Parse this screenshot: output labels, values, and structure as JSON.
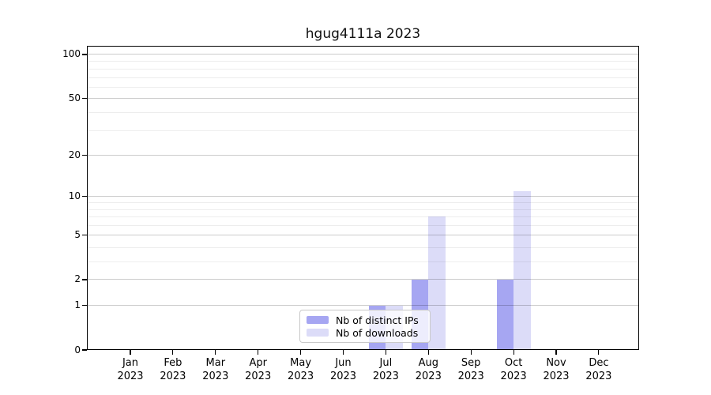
{
  "chart_data": {
    "type": "bar",
    "title": "hgug4111a 2023",
    "x_categories": [
      {
        "month": "Jan",
        "year": "2023"
      },
      {
        "month": "Feb",
        "year": "2023"
      },
      {
        "month": "Mar",
        "year": "2023"
      },
      {
        "month": "Apr",
        "year": "2023"
      },
      {
        "month": "May",
        "year": "2023"
      },
      {
        "month": "Jun",
        "year": "2023"
      },
      {
        "month": "Jul",
        "year": "2023"
      },
      {
        "month": "Aug",
        "year": "2023"
      },
      {
        "month": "Sep",
        "year": "2023"
      },
      {
        "month": "Oct",
        "year": "2023"
      },
      {
        "month": "Nov",
        "year": "2023"
      },
      {
        "month": "Dec",
        "year": "2023"
      }
    ],
    "series": [
      {
        "name": "Nb of distinct IPs",
        "color": "#a6a6f2",
        "values": [
          0,
          0,
          0,
          0,
          0,
          0,
          1,
          2,
          0,
          2,
          0,
          0
        ]
      },
      {
        "name": "Nb of downloads",
        "color": "#dcdcf8",
        "values": [
          0,
          0,
          0,
          0,
          0,
          0,
          1,
          7,
          0,
          11,
          0,
          0
        ]
      }
    ],
    "y_axis": {
      "scale": "log1p",
      "ticks": [
        0,
        1,
        2,
        5,
        10,
        20,
        50,
        100
      ],
      "minor_gridlines": [
        3,
        4,
        6,
        7,
        8,
        9,
        30,
        40,
        60,
        70,
        80,
        90
      ],
      "ylim": [
        0,
        100
      ]
    },
    "xlabel": "",
    "ylabel": "",
    "grid": true,
    "legend_position": "bottom-center"
  }
}
